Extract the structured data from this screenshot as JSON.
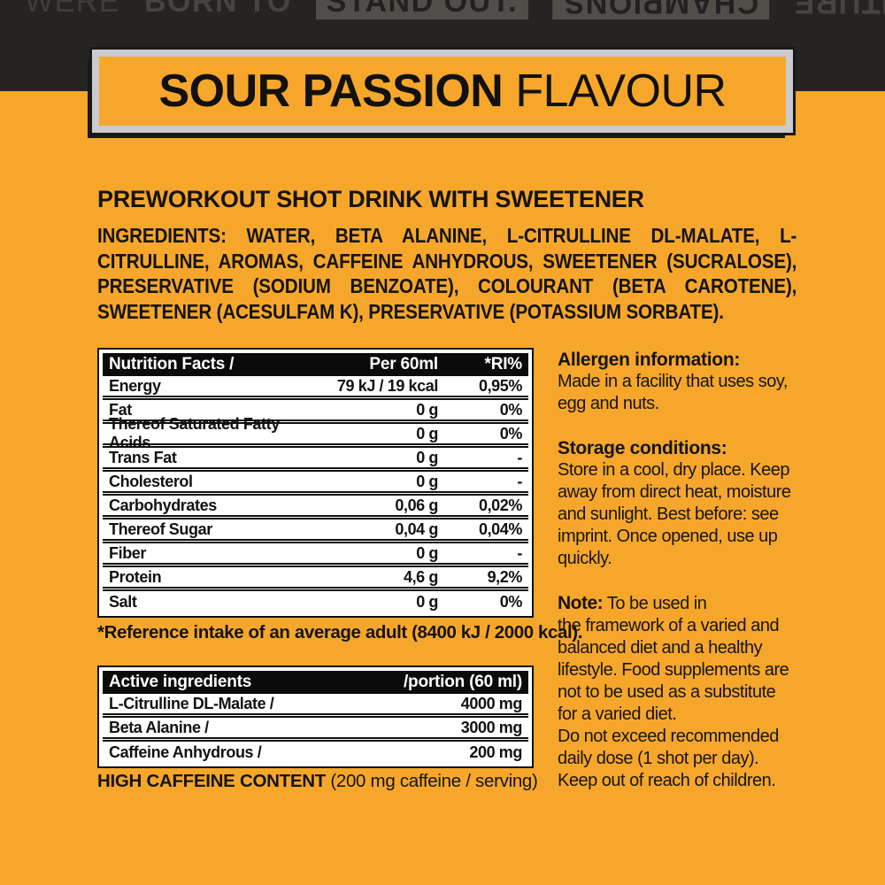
{
  "colors": {
    "background_yellow": "#F6A72B",
    "banner_dark": "#262323",
    "title_border_silver": "#C9CBD0",
    "table_header_black": "#0C0B0B",
    "text_black": "#161412"
  },
  "top_banner": {
    "left_prefix": "WERE",
    "left_bold": "BORN TO",
    "left_highlight": "STAND OUT.",
    "right_highlight": "CHAMPIONS",
    "right_text": "OUT TO THE FUTURE"
  },
  "title": {
    "bold": "SOUR PASSION",
    "regular": "FLAVOUR"
  },
  "subtitle": "PREWORKOUT SHOT DRINK WITH SWEETENER",
  "ingredients": {
    "label": "INGREDIENTS:",
    "text": "WATER, BETA ALANINE, L-CITRULLINE DL-MALATE, L-CITRULLINE, AROMAS, CAFFEINE ANHYDROUS, SWEETENER (SUCRALOSE), PRESERVATIVE (SODIUM BENZOATE), COLOURANT (BETA CAROTENE), SWEETENER (ACESULFAM K), PRESERVATIVE (POTASSIUM SORBATE)."
  },
  "nutrition_table": {
    "headers": [
      "Nutrition Facts /",
      "Per 60ml",
      "*RI%"
    ],
    "rows": [
      [
        "Energy",
        "79 kJ / 19 kcal",
        "0,95%"
      ],
      [
        "Fat",
        "0 g",
        "0%"
      ],
      [
        "Thereof Saturated Fatty Acids",
        "0 g",
        "0%"
      ],
      [
        "Trans Fat",
        "0 g",
        "-"
      ],
      [
        "Cholesterol",
        "0 g",
        "-"
      ],
      [
        "Carbohydrates",
        "0,06 g",
        "0,02%"
      ],
      [
        "Thereof Sugar",
        "0,04 g",
        "0,04%"
      ],
      [
        "Fiber",
        "0 g",
        "-"
      ],
      [
        "Protein",
        "4,6 g",
        "9,2%"
      ],
      [
        "Salt",
        "0 g",
        "0%"
      ]
    ],
    "footnote": "*Reference intake of an average adult (8400 kJ / 2000 kcal)."
  },
  "active_table": {
    "headers": [
      "Active ingredients",
      "/portion (60 ml)"
    ],
    "rows": [
      [
        "L-Citrulline DL-Malate /",
        "4000 mg"
      ],
      [
        "Beta Alanine /",
        "3000 mg"
      ],
      [
        "Caffeine Anhydrous /",
        "200 mg"
      ]
    ]
  },
  "caffeine_note": {
    "bold": "HIGH CAFFEINE CONTENT",
    "regular": "(200 mg caffeine / serving)"
  },
  "info_sections": [
    {
      "heading": "Allergen information:",
      "body": "Made in a facility that uses soy,\negg and nuts."
    },
    {
      "heading": "Storage conditions:",
      "body": "Store in a cool, dry place. Keep\naway from direct heat, moisture\nand sunlight. Best before: see\nimprint. Once opened, use up\nquickly."
    },
    {
      "heading": "Note:",
      "body": "To be used in\nthe framework of a varied and\nbalanced diet and a healthy\nlifestyle. Food supplements are\nnot to be used as a substitute\nfor a varied diet.\nDo not exceed recommended\ndaily dose (1 shot per day).\nKeep out of reach of children."
    }
  ]
}
